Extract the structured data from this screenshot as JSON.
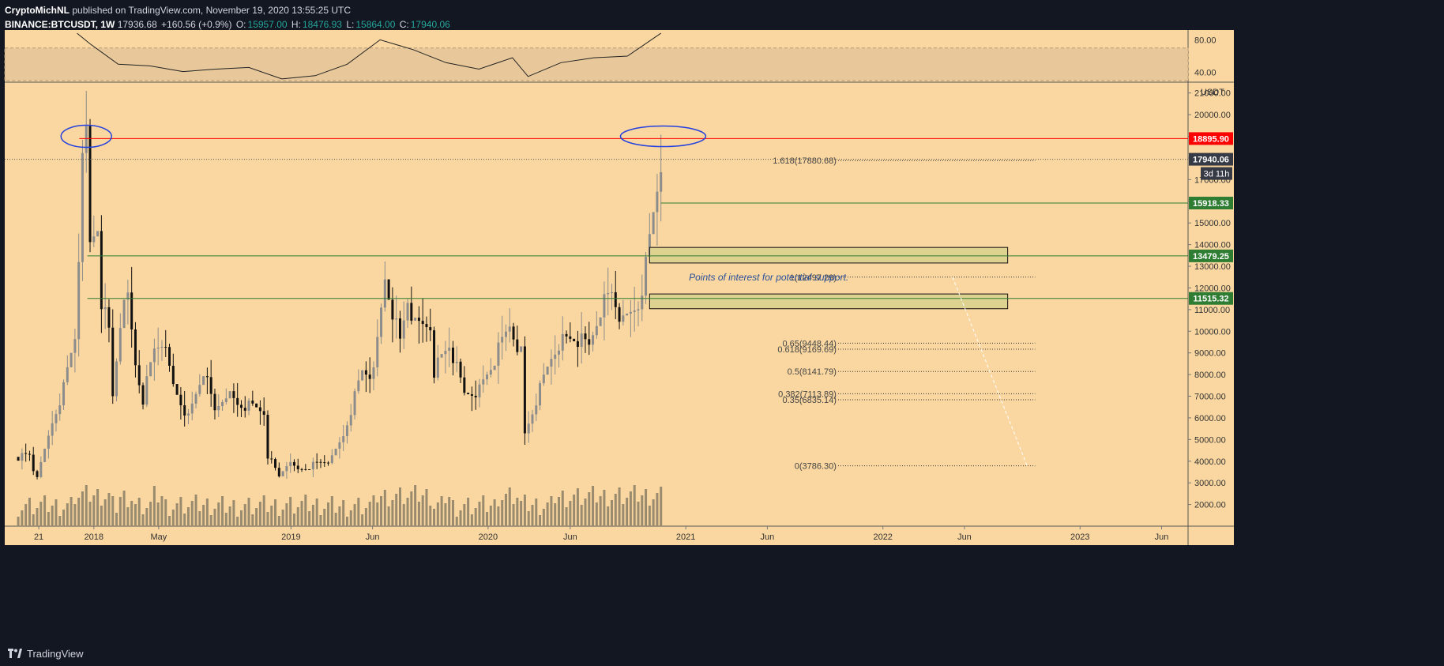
{
  "header": {
    "author": "CryptoMichNL",
    "published": "published on TradingView.com, November 19, 2020 13:55:25 UTC",
    "symbol": "BINANCE:BTCUSDT, 1W",
    "price": "17936.68",
    "change": "+160.56 (+0.9%)",
    "open_label": "O:",
    "open": "15957.00",
    "high_label": "H:",
    "high": "18476.93",
    "low_label": "L:",
    "low": "15864.00",
    "close_label": "C:",
    "close": "17940.06"
  },
  "footer": {
    "brand": "TradingView",
    "logo_icon": "tradingview-logo-icon"
  },
  "colors": {
    "background": "#131722",
    "pane": "#fad7a0",
    "text": "#d1d4dc",
    "resistance": "#ff0000",
    "support": "#2e7d32",
    "circle": "#2340e0",
    "zone_fill": "#d8d18e",
    "annotation": "#2a4f9b"
  },
  "chart_data": {
    "type": "candlestick",
    "symbol": "BINANCE:BTCUSDT",
    "interval": "1W",
    "y_unit": "USDT",
    "ylim": [
      1000,
      21500
    ],
    "xlim": [
      "2017-07-20",
      "2023-07-20"
    ],
    "y_ticks": [
      "2000.00",
      "3000.00",
      "4000.00",
      "5000.00",
      "6000.00",
      "7000.00",
      "8000.00",
      "9000.00",
      "10000.00",
      "11000.00",
      "12000.00",
      "13000.00",
      "14000.00",
      "15000.00",
      "16000.00",
      "17000.00",
      "18000.00",
      "19000.00",
      "20000.00",
      "21000.00"
    ],
    "x_ticks": [
      {
        "date": "2017-09-21",
        "label": "21"
      },
      {
        "date": "2018-01-01",
        "label": "2018"
      },
      {
        "date": "2018-05-01",
        "label": "May"
      },
      {
        "date": "2019-01-01",
        "label": "2019"
      },
      {
        "date": "2019-06-01",
        "label": "Jun"
      },
      {
        "date": "2020-01-01",
        "label": "2020"
      },
      {
        "date": "2020-06-01",
        "label": "Jun"
      },
      {
        "date": "2021-01-01",
        "label": "2021"
      },
      {
        "date": "2021-06-01",
        "label": "Jun"
      },
      {
        "date": "2022-01-01",
        "label": "2022"
      },
      {
        "date": "2022-06-01",
        "label": "Jun"
      },
      {
        "date": "2023-01-01",
        "label": "2023"
      },
      {
        "date": "2023-06-01",
        "label": "Jun"
      }
    ],
    "price_path": [
      [
        "2017-08-14",
        4200
      ],
      [
        "2017-09-04",
        4300
      ],
      [
        "2017-09-15",
        3200
      ],
      [
        "2017-09-25",
        3800
      ],
      [
        "2017-10-16",
        5800
      ],
      [
        "2017-11-06",
        7400
      ],
      [
        "2017-11-27",
        9800
      ],
      [
        "2017-12-11",
        17500
      ],
      [
        "2017-12-18",
        19000
      ],
      [
        "2017-12-25",
        14000
      ],
      [
        "2018-01-08",
        15000
      ],
      [
        "2018-01-15",
        11500
      ],
      [
        "2018-01-29",
        10000
      ],
      [
        "2018-02-05",
        7000
      ],
      [
        "2018-02-19",
        10500
      ],
      [
        "2018-03-05",
        11500
      ],
      [
        "2018-03-19",
        8500
      ],
      [
        "2018-04-02",
        6900
      ],
      [
        "2018-04-23",
        9200
      ],
      [
        "2018-05-07",
        9600
      ],
      [
        "2018-05-28",
        7500
      ],
      [
        "2018-06-25",
        6000
      ],
      [
        "2018-07-23",
        8200
      ],
      [
        "2018-08-13",
        6300
      ],
      [
        "2018-09-03",
        7200
      ],
      [
        "2018-09-24",
        6600
      ],
      [
        "2018-10-22",
        6500
      ],
      [
        "2018-11-12",
        6300
      ],
      [
        "2018-11-19",
        4300
      ],
      [
        "2018-12-10",
        3300
      ],
      [
        "2018-12-24",
        3900
      ],
      [
        "2019-01-14",
        3600
      ],
      [
        "2019-02-18",
        3900
      ],
      [
        "2019-03-18",
        4100
      ],
      [
        "2019-04-08",
        5200
      ],
      [
        "2019-05-13",
        8200
      ],
      [
        "2019-06-03",
        8000
      ],
      [
        "2019-06-24",
        12500
      ],
      [
        "2019-07-08",
        11000
      ],
      [
        "2019-07-22",
        9500
      ],
      [
        "2019-08-05",
        11500
      ],
      [
        "2019-08-19",
        10200
      ],
      [
        "2019-09-16",
        10300
      ],
      [
        "2019-09-23",
        8200
      ],
      [
        "2019-10-21",
        9400
      ],
      [
        "2019-11-18",
        7100
      ],
      [
        "2019-12-16",
        7300
      ],
      [
        "2020-01-13",
        8700
      ],
      [
        "2020-02-10",
        10300
      ],
      [
        "2020-03-02",
        9000
      ],
      [
        "2020-03-09",
        5200
      ],
      [
        "2020-03-30",
        6800
      ],
      [
        "2020-04-27",
        8800
      ],
      [
        "2020-05-11",
        9500
      ],
      [
        "2020-06-08",
        9700
      ],
      [
        "2020-07-06",
        9300
      ],
      [
        "2020-07-27",
        11100
      ],
      [
        "2020-08-17",
        11800
      ],
      [
        "2020-09-07",
        10300
      ],
      [
        "2020-10-05",
        11300
      ],
      [
        "2020-10-19",
        13000
      ],
      [
        "2020-11-02",
        15500
      ],
      [
        "2020-11-16",
        17940
      ]
    ],
    "horizontal_lines": [
      {
        "price": 18895.9,
        "label": "18895.90",
        "color": "#ff0000"
      },
      {
        "price": 17940.06,
        "label": "17940.06",
        "color": "#363a45",
        "dotted": true
      },
      {
        "price": 15918.33,
        "label": "15918.33",
        "color": "#2e7d32"
      },
      {
        "price": 13479.25,
        "label": "13479.25",
        "color": "#2e7d32"
      },
      {
        "price": 11515.32,
        "label": "11515.32",
        "color": "#2e7d32"
      }
    ],
    "countdown_label": "3d 11h",
    "zones": [
      {
        "from": 13150,
        "to": 13870
      },
      {
        "from": 11040,
        "to": 11720
      }
    ],
    "annotation": "Points of interest for potential support.",
    "fib_levels": [
      {
        "label": "1.618(17880.68)",
        "price": 17880.68
      },
      {
        "label": "1(12497.29)",
        "price": 12497.29
      },
      {
        "label": "0.65(9448.44)",
        "price": 9448.44
      },
      {
        "label": "0.618(9169.69)",
        "price": 9169.69
      },
      {
        "label": "0.5(8141.79)",
        "price": 8141.79
      },
      {
        "label": "0.382(7113.89)",
        "price": 7113.89
      },
      {
        "label": "0.35(6835.14)",
        "price": 6835.14
      },
      {
        "label": "0(3786.30)",
        "price": 3786.3
      }
    ],
    "rsi": {
      "ticks": [
        "80.00",
        "40.00"
      ],
      "ylim": [
        28,
        92
      ],
      "band": [
        30,
        70
      ],
      "path": [
        [
          "2017-12-01",
          88
        ],
        [
          "2017-12-25",
          75
        ],
        [
          "2018-02-15",
          50
        ],
        [
          "2018-04-15",
          48
        ],
        [
          "2018-06-15",
          41
        ],
        [
          "2018-08-15",
          44
        ],
        [
          "2018-10-15",
          46
        ],
        [
          "2018-12-15",
          32
        ],
        [
          "2019-02-15",
          36
        ],
        [
          "2019-04-15",
          50
        ],
        [
          "2019-06-15",
          80
        ],
        [
          "2019-08-15",
          68
        ],
        [
          "2019-10-15",
          52
        ],
        [
          "2019-12-15",
          44
        ],
        [
          "2020-02-15",
          58
        ],
        [
          "2020-03-15",
          35
        ],
        [
          "2020-05-15",
          52
        ],
        [
          "2020-07-15",
          58
        ],
        [
          "2020-09-15",
          60
        ],
        [
          "2020-11-16",
          88
        ]
      ]
    }
  }
}
